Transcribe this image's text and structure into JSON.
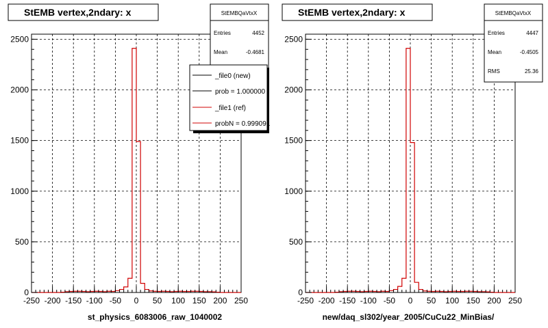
{
  "chart_data": [
    {
      "type": "bar",
      "title": "StEMB  vertex,2ndary: x",
      "xlabel": "st_physics_6083006_raw_1040002",
      "ylabel": "",
      "xlim": [
        -250,
        250
      ],
      "ylim": [
        0,
        2550
      ],
      "grid": true,
      "x_ticks": [
        "-250",
        "-200",
        "-150",
        "-100",
        "-50",
        "0",
        "50",
        "100",
        "150",
        "200",
        "250"
      ],
      "y_ticks": [
        "0",
        "500",
        "1000",
        "1500",
        "2000",
        "2500"
      ],
      "stats": {
        "name": "StEMBQaVtxX",
        "entries_label": "Entries",
        "entries": "4452",
        "mean_label": "Mean",
        "mean": "-0.4681"
      },
      "legend": {
        "placement": "top-right",
        "entries": [
          {
            "label": "_file0 (new)",
            "color": "#000000"
          },
          {
            "label": "prob = 1.000000",
            "color": "#000000"
          },
          {
            "label": "_file1 (ref)",
            "color": "#d00000"
          },
          {
            "label": "probN = 0.999091",
            "color": "#d00000"
          }
        ]
      },
      "series": [
        {
          "color": "#d00000",
          "bin_edges": [
            -250,
            -240,
            -230,
            -220,
            -210,
            -200,
            -190,
            -180,
            -170,
            -160,
            -150,
            -140,
            -130,
            -120,
            -110,
            -100,
            -90,
            -80,
            -70,
            -60,
            -50,
            -40,
            -30,
            -20,
            -10,
            0,
            10,
            20,
            30,
            40,
            50,
            60,
            70,
            80,
            90,
            100,
            110,
            120,
            130,
            140,
            150,
            160,
            170,
            180,
            190,
            200,
            210,
            220,
            230,
            240,
            250
          ],
          "values": [
            0,
            0,
            0,
            0,
            0,
            0,
            0,
            3,
            8,
            10,
            12,
            12,
            10,
            8,
            10,
            12,
            10,
            8,
            12,
            10,
            18,
            30,
            55,
            140,
            2410,
            1490,
            90,
            30,
            15,
            12,
            10,
            12,
            10,
            8,
            10,
            12,
            10,
            10,
            12,
            12,
            10,
            8,
            8,
            6,
            3,
            0,
            0,
            0,
            0,
            0
          ]
        }
      ]
    },
    {
      "type": "bar",
      "title": "StEMB  vertex,2ndary: x",
      "xlabel": "new/daq_sl302/year_2005/CuCu22_MinBias/",
      "ylabel": "",
      "xlim": [
        -250,
        250
      ],
      "ylim": [
        0,
        2550
      ],
      "grid": true,
      "x_ticks": [
        "-250",
        "-200",
        "-150",
        "-100",
        "-50",
        "0",
        "50",
        "100",
        "150",
        "200",
        "250"
      ],
      "y_ticks": [
        "0",
        "500",
        "1000",
        "1500",
        "2000",
        "2500"
      ],
      "stats": {
        "name": "StEMBQaVtxX",
        "entries_label": "Entries",
        "entries": "4447",
        "mean_label": "Mean",
        "mean": "-0.4505",
        "rms_label": "RMS",
        "rms": "25.36"
      },
      "series": [
        {
          "color": "#d00000",
          "bin_edges": [
            -250,
            -240,
            -230,
            -220,
            -210,
            -200,
            -190,
            -180,
            -170,
            -160,
            -150,
            -140,
            -130,
            -120,
            -110,
            -100,
            -90,
            -80,
            -70,
            -60,
            -50,
            -40,
            -30,
            -20,
            -10,
            0,
            10,
            20,
            30,
            40,
            50,
            60,
            70,
            80,
            90,
            100,
            110,
            120,
            130,
            140,
            150,
            160,
            170,
            180,
            190,
            200,
            210,
            220,
            230,
            240,
            250
          ],
          "values": [
            0,
            0,
            0,
            0,
            0,
            0,
            0,
            3,
            8,
            10,
            12,
            12,
            10,
            8,
            10,
            12,
            10,
            8,
            12,
            10,
            18,
            30,
            60,
            140,
            2410,
            1480,
            100,
            30,
            15,
            12,
            10,
            12,
            10,
            8,
            10,
            12,
            10,
            10,
            12,
            12,
            10,
            8,
            8,
            6,
            3,
            0,
            0,
            0,
            0,
            0
          ]
        }
      ]
    }
  ]
}
